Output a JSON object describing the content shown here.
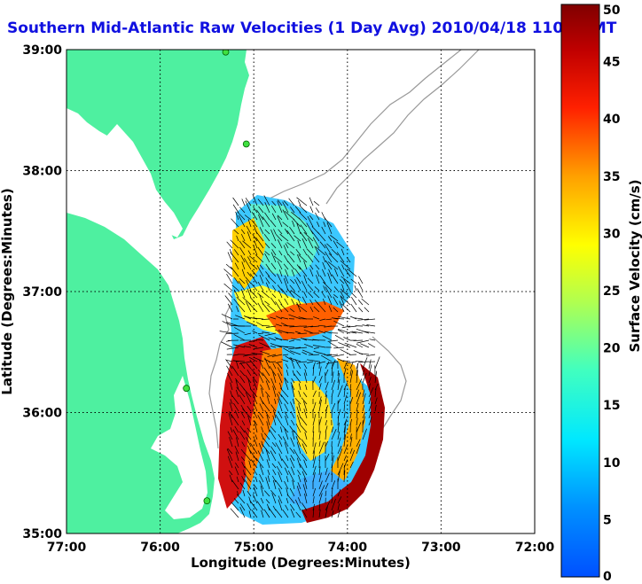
{
  "title": "Southern Mid-Atlantic Raw Velocities (1 Day Avg) 2010/04/18 1100 GMT",
  "map": {
    "xlabel": "Longitude (Degrees:Minutes)",
    "ylabel": "Latitude (Degrees:Minutes)",
    "x_ticks": [
      "77:00",
      "76:00",
      "75:00",
      "74:00",
      "73:00",
      "72:00"
    ],
    "y_ticks": [
      "39:00",
      "38:00",
      "37:00",
      "36:00",
      "35:00"
    ],
    "lon_range": [
      -77,
      -72
    ],
    "lat_range": [
      35,
      39
    ],
    "grid": true,
    "land_color": "#4ef0a0",
    "bathymetry_color": "#999999"
  },
  "colorbar": {
    "label": "Surface Velocity (cm/s)",
    "ticks": [
      "50",
      "45",
      "40",
      "35",
      "30",
      "25",
      "20",
      "15",
      "10",
      "5",
      "0"
    ],
    "range": [
      0,
      50
    ],
    "colormap": "jet"
  },
  "stations": [
    {
      "lon": -75.3,
      "lat": 38.98
    },
    {
      "lon": -75.08,
      "lat": 38.22
    },
    {
      "lon": -75.72,
      "lat": 36.2
    },
    {
      "lon": -75.5,
      "lat": 35.27
    }
  ]
}
